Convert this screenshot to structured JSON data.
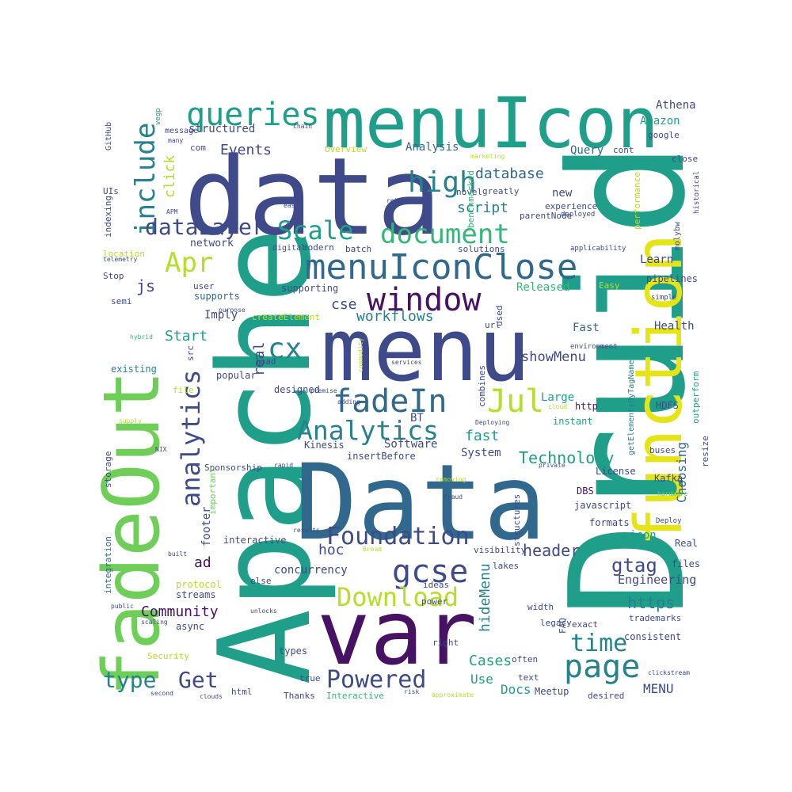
{
  "palette": {
    "dark_purple": "#471164",
    "indigo": "#3e4a89",
    "blue": "#31688e",
    "teal": "#26828e",
    "sea_green": "#1f9e89",
    "green": "#35b779",
    "lime": "#6ece58",
    "yellow_green": "#b5de2b",
    "yellow": "#e5e419"
  },
  "words": [
    {
      "t": "Druid",
      "c": "sea_green"
    },
    {
      "t": "Apache",
      "c": "sea_green"
    },
    {
      "t": "Data",
      "c": "blue"
    },
    {
      "t": "data",
      "c": "indigo"
    },
    {
      "t": "menuIcon",
      "c": "sea_green"
    },
    {
      "t": "menu",
      "c": "indigo"
    },
    {
      "t": "var",
      "c": "dark_purple"
    },
    {
      "t": "fadeOut",
      "c": "lime"
    },
    {
      "t": "function",
      "c": "yellow"
    },
    {
      "t": "menuIconClose",
      "c": "blue"
    },
    {
      "t": "window",
      "c": "dark_purple"
    },
    {
      "t": "queries",
      "c": "sea_green"
    },
    {
      "t": "include",
      "c": "teal"
    },
    {
      "t": "high",
      "c": "teal"
    },
    {
      "t": "document",
      "c": "green"
    },
    {
      "t": "Apr",
      "c": "yellow_green"
    },
    {
      "t": "Scale",
      "c": "sea_green"
    },
    {
      "t": "dataLayer",
      "c": "indigo"
    },
    {
      "t": "fadeIn",
      "c": "blue"
    },
    {
      "t": "Jul",
      "c": "yellow_green"
    },
    {
      "t": "Analytics",
      "c": "teal"
    },
    {
      "t": "analytics",
      "c": "indigo"
    },
    {
      "t": "cx",
      "c": "teal"
    },
    {
      "t": "gcse",
      "c": "indigo"
    },
    {
      "t": "page",
      "c": "teal"
    },
    {
      "t": "Foundation",
      "c": "indigo"
    },
    {
      "t": "Download",
      "c": "yellow_green"
    },
    {
      "t": "Powered",
      "c": "indigo"
    },
    {
      "t": "time",
      "c": "teal"
    },
    {
      "t": "type",
      "c": "teal"
    },
    {
      "t": "Get",
      "c": "indigo"
    },
    {
      "t": "Events",
      "c": "indigo"
    },
    {
      "t": "database",
      "c": "blue"
    },
    {
      "t": "script",
      "c": "teal"
    },
    {
      "t": "click",
      "c": "yellow_green"
    },
    {
      "t": "Technology",
      "c": "sea_green"
    },
    {
      "t": "gtag",
      "c": "indigo"
    },
    {
      "t": "header",
      "c": "indigo"
    },
    {
      "t": "https",
      "c": "teal"
    },
    {
      "t": "Community",
      "c": "dark_purple"
    },
    {
      "t": "hideMenu",
      "c": "teal"
    },
    {
      "t": "showMenu",
      "c": "indigo"
    },
    {
      "t": "workflows",
      "c": "teal"
    },
    {
      "t": "cse",
      "c": "indigo"
    },
    {
      "t": "Start",
      "c": "sea_green"
    },
    {
      "t": "js",
      "c": "indigo"
    },
    {
      "t": "fast",
      "c": "sea_green"
    },
    {
      "t": "real",
      "c": "indigo"
    },
    {
      "t": "hoc",
      "c": "indigo"
    },
    {
      "t": "ad",
      "c": "dark_purple"
    },
    {
      "t": "Cases",
      "c": "sea_green"
    },
    {
      "t": "Docs",
      "c": "sea_green"
    },
    {
      "t": "MENU",
      "c": "indigo"
    },
    {
      "t": "Use",
      "c": "sea_green"
    },
    {
      "t": "Engineering",
      "c": "indigo"
    },
    {
      "t": "Choosing",
      "c": "blue"
    },
    {
      "t": "concurrency",
      "c": "indigo"
    },
    {
      "t": "Athena",
      "c": "indigo"
    },
    {
      "t": "Amazon",
      "c": "sea_green"
    },
    {
      "t": "Query",
      "c": "blue"
    },
    {
      "t": "Analysis",
      "c": "blue"
    },
    {
      "t": "structured",
      "c": "indigo"
    },
    {
      "t": "network",
      "c": "indigo"
    },
    {
      "t": "Learn",
      "c": "indigo"
    },
    {
      "t": "new",
      "c": "indigo"
    },
    {
      "t": "experience",
      "c": "indigo"
    },
    {
      "t": "Released",
      "c": "green"
    },
    {
      "t": "Health",
      "c": "indigo"
    },
    {
      "t": "Fast",
      "c": "blue"
    },
    {
      "t": "pipelines",
      "c": "indigo"
    },
    {
      "t": "supports",
      "c": "blue"
    },
    {
      "t": "supporting",
      "c": "indigo"
    },
    {
      "t": "Imply",
      "c": "indigo"
    },
    {
      "t": "existing",
      "c": "teal"
    },
    {
      "t": "popular",
      "c": "indigo"
    },
    {
      "t": "designed",
      "c": "indigo"
    },
    {
      "t": "Large",
      "c": "sea_green"
    },
    {
      "t": "http",
      "c": "dark_purple"
    },
    {
      "t": "instant",
      "c": "sea_green"
    },
    {
      "t": "HDFS",
      "c": "indigo"
    },
    {
      "t": "Software",
      "c": "indigo"
    },
    {
      "t": "System",
      "c": "indigo"
    },
    {
      "t": "BT",
      "c": "indigo"
    },
    {
      "t": "Kinesis",
      "c": "indigo"
    },
    {
      "t": "insertBefore",
      "c": "indigo"
    },
    {
      "t": "DBS",
      "c": "dark_purple"
    },
    {
      "t": "javascript",
      "c": "indigo"
    },
    {
      "t": "formats",
      "c": "indigo"
    },
    {
      "t": "icon",
      "c": "sea_green"
    },
    {
      "t": "Real",
      "c": "indigo"
    },
    {
      "t": "files",
      "c": "indigo"
    },
    {
      "t": "Kafka",
      "c": "indigo"
    },
    {
      "t": "License",
      "c": "indigo"
    },
    {
      "t": "footer",
      "c": "indigo"
    },
    {
      "t": "interactive",
      "c": "indigo"
    },
    {
      "t": "Sponsorship",
      "c": "indigo"
    },
    {
      "t": "important",
      "c": "lime"
    },
    {
      "t": "protocol",
      "c": "yellow_green"
    },
    {
      "t": "streams",
      "c": "indigo"
    },
    {
      "t": "async",
      "c": "indigo"
    },
    {
      "t": "types",
      "c": "indigo"
    },
    {
      "t": "Thanks",
      "c": "indigo"
    },
    {
      "t": "Interactive",
      "c": "green"
    },
    {
      "t": "Meetup",
      "c": "indigo"
    },
    {
      "t": "desired",
      "c": "indigo"
    },
    {
      "t": "text",
      "c": "indigo"
    },
    {
      "t": "often",
      "c": "indigo"
    },
    {
      "t": "right",
      "c": "indigo"
    },
    {
      "t": "legacy",
      "c": "indigo"
    },
    {
      "t": "exact",
      "c": "indigo"
    },
    {
      "t": "width",
      "c": "indigo"
    },
    {
      "t": "FAQ",
      "c": "indigo"
    },
    {
      "t": "consistent",
      "c": "indigo"
    },
    {
      "t": "trademarks",
      "c": "indigo"
    },
    {
      "t": "lakes",
      "c": "indigo"
    },
    {
      "t": "visibility",
      "c": "indigo"
    },
    {
      "t": "ideas",
      "c": "indigo"
    },
    {
      "t": "else",
      "c": "indigo"
    },
    {
      "t": "power",
      "c": "indigo"
    },
    {
      "t": "Security",
      "c": "yellow_green"
    },
    {
      "t": "html",
      "c": "indigo"
    },
    {
      "t": "true",
      "c": "indigo"
    },
    {
      "t": "integration",
      "c": "blue"
    },
    {
      "t": "storage",
      "c": "indigo"
    },
    {
      "t": "file",
      "c": "yellow_green"
    },
    {
      "t": "src",
      "c": "indigo"
    },
    {
      "t": "semi",
      "c": "indigo"
    },
    {
      "t": "user",
      "c": "indigo"
    },
    {
      "t": "Stop",
      "c": "indigo"
    },
    {
      "t": "location",
      "c": "yellow_green"
    },
    {
      "t": "UIs",
      "c": "indigo"
    },
    {
      "t": "indexing",
      "c": "indigo"
    },
    {
      "t": "GitHub",
      "c": "indigo"
    },
    {
      "t": "com",
      "c": "indigo"
    },
    {
      "t": "message",
      "c": "indigo"
    },
    {
      "t": "Overview",
      "c": "yellow_green"
    },
    {
      "t": "cont",
      "c": "indigo"
    },
    {
      "t": "google",
      "c": "indigo"
    },
    {
      "t": "close",
      "c": "indigo"
    },
    {
      "t": "performance",
      "c": "yellow_green"
    },
    {
      "t": "outperform",
      "c": "sea_green"
    },
    {
      "t": "resize",
      "c": "indigo"
    },
    {
      "t": "buses",
      "c": "indigo"
    },
    {
      "t": "Deploy",
      "c": "indigo"
    },
    {
      "t": "hardware",
      "c": "lime"
    },
    {
      "t": "getElementsByTagName",
      "c": "teal"
    },
    {
      "t": "structures",
      "c": "indigo"
    },
    {
      "t": "novel",
      "c": "indigo"
    },
    {
      "t": "greatly",
      "c": "indigo"
    },
    {
      "t": "parentNode",
      "c": "indigo"
    },
    {
      "t": "solutions",
      "c": "indigo"
    },
    {
      "t": "batch",
      "c": "indigo"
    },
    {
      "t": "modern",
      "c": "indigo"
    },
    {
      "t": "digital",
      "c": "indigo"
    },
    {
      "t": "createElement",
      "c": "yellow_green"
    },
    {
      "t": "load",
      "c": "indigo"
    },
    {
      "t": "combines",
      "c": "indigo"
    },
    {
      "t": "url",
      "c": "indigo"
    },
    {
      "t": "used",
      "c": "indigo"
    },
    {
      "t": "benchmarked",
      "c": "green"
    },
    {
      "t": "Easy",
      "c": "yellow_green"
    },
    {
      "t": "simple",
      "c": "indigo"
    },
    {
      "t": "environment",
      "c": "indigo"
    },
    {
      "t": "molybw",
      "c": "indigo"
    },
    {
      "t": "historical",
      "c": "indigo"
    },
    {
      "t": "deployed",
      "c": "indigo"
    },
    {
      "t": "applicability",
      "c": "indigo"
    },
    {
      "t": "telemetry",
      "c": "indigo"
    },
    {
      "t": "APM",
      "c": "indigo"
    },
    {
      "t": "easy",
      "c": "indigo"
    },
    {
      "t": "return",
      "c": "indigo"
    },
    {
      "t": "marketing",
      "c": "yellow_green"
    },
    {
      "t": "chain",
      "c": "indigo"
    },
    {
      "t": "many",
      "c": "indigo"
    },
    {
      "t": "vegp",
      "c": "sea_green"
    },
    {
      "t": "purpose",
      "c": "indigo"
    },
    {
      "t": "hybrid",
      "c": "green"
    },
    {
      "t": "commodity",
      "c": "yellow_green"
    },
    {
      "t": "services",
      "c": "indigo"
    },
    {
      "t": "premise",
      "c": "indigo"
    },
    {
      "t": "adding",
      "c": "indigo"
    },
    {
      "t": "Deploying",
      "c": "indigo"
    },
    {
      "t": "cloud",
      "c": "yellow_green"
    },
    {
      "t": "private",
      "c": "indigo"
    },
    {
      "t": "supply",
      "c": "yellow_green"
    },
    {
      "t": "NIX",
      "c": "indigo"
    },
    {
      "t": "rapid",
      "c": "indigo"
    },
    {
      "t": "removing",
      "c": "yellow_green"
    },
    {
      "t": "fraud",
      "c": "indigo"
    },
    {
      "t": "results",
      "c": "indigo"
    },
    {
      "t": "Broad",
      "c": "yellow_green"
    },
    {
      "t": "built",
      "c": "indigo"
    },
    {
      "t": "public",
      "c": "indigo"
    },
    {
      "t": "scaling",
      "c": "indigo"
    },
    {
      "t": "unlocks",
      "c": "indigo"
    },
    {
      "t": "second",
      "c": "indigo"
    },
    {
      "t": "clouds",
      "c": "indigo"
    },
    {
      "t": "risk",
      "c": "indigo"
    },
    {
      "t": "approximate",
      "c": "yellow_green"
    },
    {
      "t": "clickstream",
      "c": "indigo"
    }
  ]
}
